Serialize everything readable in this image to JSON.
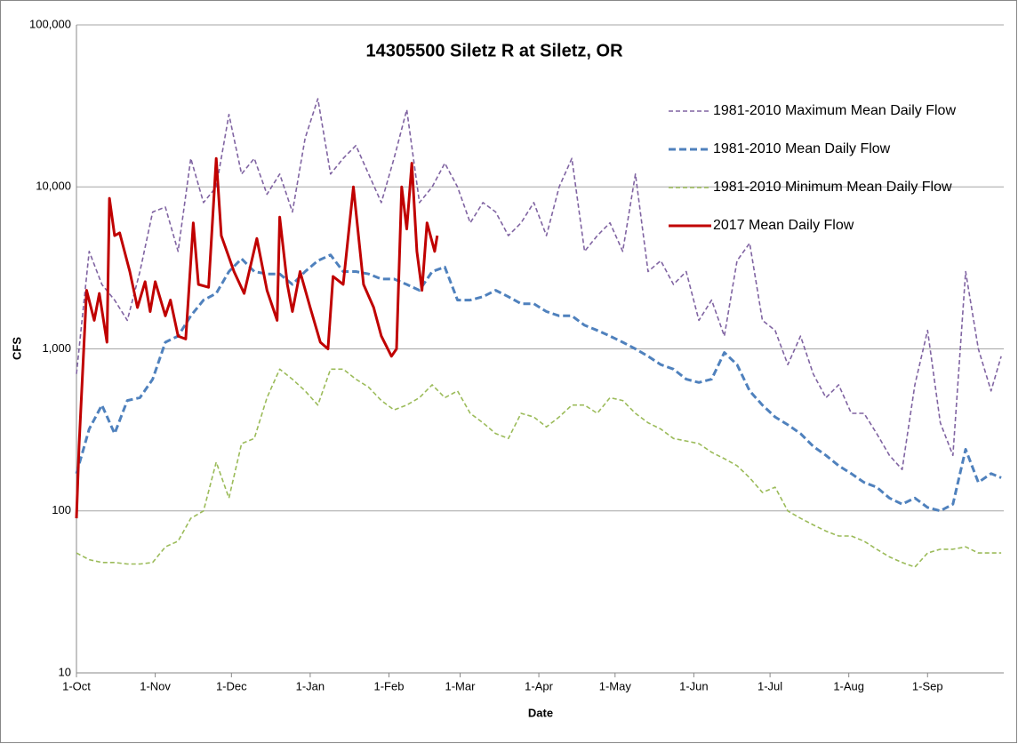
{
  "chart_data": {
    "type": "line",
    "title": "14305500 Siletz R at Siletz, OR",
    "xlabel": "Date",
    "ylabel": "CFS",
    "log_scale_y": true,
    "grid": true,
    "legend": "upper right",
    "xlim": [
      0,
      365
    ],
    "xticks": [
      {
        "value": 0,
        "label": "1-Oct"
      },
      {
        "value": 31,
        "label": "1-Nov"
      },
      {
        "value": 61,
        "label": "1-Dec"
      },
      {
        "value": 92,
        "label": "1-Jan"
      },
      {
        "value": 123,
        "label": "1-Feb"
      },
      {
        "value": 151,
        "label": "1-Mar"
      },
      {
        "value": 182,
        "label": "1-Apr"
      },
      {
        "value": 212,
        "label": "1-May"
      },
      {
        "value": 243,
        "label": "1-Jun"
      },
      {
        "value": 273,
        "label": "1-Jul"
      },
      {
        "value": 304,
        "label": "1-Aug"
      },
      {
        "value": 335,
        "label": "1-Sep"
      }
    ],
    "ylim": [
      10,
      100000
    ],
    "yticks": [
      10,
      100,
      {
        "value": 1000,
        "label": "1,000"
      },
      {
        "value": 10000,
        "label": "10,000"
      },
      {
        "value": 100000,
        "label": "100,000"
      }
    ],
    "series": [
      {
        "name": "1981-2010 Maximum Mean Daily Flow",
        "color": "#8064a2",
        "line_style": "dashed",
        "x": [
          0,
          5,
          10,
          15,
          20,
          25,
          30,
          35,
          40,
          45,
          50,
          55,
          60,
          65,
          70,
          75,
          80,
          85,
          90,
          95,
          100,
          105,
          110,
          115,
          120,
          125,
          130,
          135,
          140,
          145,
          150,
          155,
          160,
          165,
          170,
          175,
          180,
          185,
          190,
          195,
          200,
          205,
          210,
          215,
          220,
          225,
          230,
          235,
          240,
          245,
          250,
          255,
          260,
          265,
          270,
          275,
          280,
          285,
          290,
          295,
          300,
          305,
          310,
          315,
          320,
          325,
          330,
          335,
          340,
          345,
          350,
          355,
          360,
          364
        ],
        "values": [
          700,
          4000,
          2500,
          2000,
          1500,
          3000,
          7000,
          7500,
          4000,
          15000,
          8000,
          10000,
          28000,
          12000,
          15000,
          9000,
          12000,
          7000,
          20000,
          35000,
          12000,
          15000,
          18000,
          12000,
          8000,
          15000,
          30000,
          8000,
          10000,
          14000,
          10000,
          6000,
          8000,
          7000,
          5000,
          6000,
          8000,
          5000,
          10000,
          15000,
          4000,
          5000,
          6000,
          4000,
          12000,
          3000,
          3500,
          2500,
          3000,
          1500,
          2000,
          1200,
          3500,
          4500,
          1500,
          1300,
          800,
          1200,
          700,
          500,
          600,
          400,
          400,
          300,
          220,
          180,
          600,
          1300,
          350,
          220,
          3000,
          1000,
          550,
          900
        ]
      },
      {
        "name": "1981-2010 Mean Daily Flow",
        "color": "#4f81bd",
        "line_style": "dashed",
        "x": [
          0,
          5,
          10,
          15,
          20,
          25,
          30,
          35,
          40,
          45,
          50,
          55,
          60,
          65,
          70,
          75,
          80,
          85,
          90,
          95,
          100,
          105,
          110,
          115,
          120,
          125,
          130,
          135,
          140,
          145,
          150,
          155,
          160,
          165,
          170,
          175,
          180,
          185,
          190,
          195,
          200,
          205,
          210,
          215,
          220,
          225,
          230,
          235,
          240,
          245,
          250,
          255,
          260,
          265,
          270,
          275,
          280,
          285,
          290,
          295,
          300,
          305,
          310,
          315,
          320,
          325,
          330,
          335,
          340,
          345,
          350,
          355,
          360,
          364
        ],
        "values": [
          170,
          320,
          450,
          300,
          480,
          500,
          650,
          1100,
          1200,
          1600,
          2000,
          2200,
          3000,
          3600,
          3000,
          2900,
          2900,
          2500,
          3000,
          3500,
          3800,
          3000,
          3000,
          2900,
          2700,
          2700,
          2500,
          2300,
          3000,
          3200,
          2000,
          2000,
          2100,
          2300,
          2100,
          1900,
          1900,
          1700,
          1600,
          1600,
          1400,
          1300,
          1200,
          1100,
          1000,
          900,
          800,
          750,
          650,
          620,
          650,
          950,
          800,
          550,
          450,
          380,
          340,
          300,
          250,
          220,
          190,
          170,
          150,
          140,
          120,
          110,
          120,
          105,
          100,
          110,
          240,
          150,
          170,
          160
        ]
      },
      {
        "name": "1981-2010 Minimum Mean Daily Flow",
        "color": "#9bbb59",
        "line_style": "dashed",
        "x": [
          0,
          5,
          10,
          15,
          20,
          25,
          30,
          35,
          40,
          45,
          50,
          55,
          60,
          65,
          70,
          75,
          80,
          85,
          90,
          95,
          100,
          105,
          110,
          115,
          120,
          125,
          130,
          135,
          140,
          145,
          150,
          155,
          160,
          165,
          170,
          175,
          180,
          185,
          190,
          195,
          200,
          205,
          210,
          215,
          220,
          225,
          230,
          235,
          240,
          245,
          250,
          255,
          260,
          265,
          270,
          275,
          280,
          285,
          290,
          295,
          300,
          305,
          310,
          315,
          320,
          325,
          330,
          335,
          340,
          345,
          350,
          355,
          360,
          364
        ],
        "values": [
          55,
          50,
          48,
          48,
          47,
          47,
          48,
          60,
          65,
          90,
          100,
          200,
          120,
          260,
          280,
          500,
          750,
          650,
          550,
          450,
          750,
          750,
          650,
          580,
          480,
          420,
          450,
          500,
          600,
          500,
          550,
          400,
          350,
          300,
          280,
          400,
          380,
          330,
          380,
          450,
          450,
          400,
          500,
          480,
          400,
          350,
          320,
          280,
          270,
          260,
          230,
          210,
          190,
          160,
          130,
          140,
          100,
          90,
          82,
          75,
          70,
          70,
          65,
          58,
          52,
          48,
          45,
          55,
          58,
          58,
          60,
          55,
          55,
          55
        ]
      },
      {
        "name": "2017 Mean Daily Flow",
        "color": "#c00000",
        "line_style": "solid",
        "x": [
          0,
          1,
          4,
          7,
          9,
          12,
          13,
          15,
          17,
          21,
          24,
          27,
          29,
          31,
          35,
          37,
          40,
          43,
          46,
          48,
          52,
          55,
          57,
          62,
          66,
          71,
          75,
          79,
          80,
          83,
          85,
          88,
          92,
          96,
          99,
          101,
          105,
          109,
          113,
          117,
          120,
          124,
          126,
          128,
          130,
          132,
          134,
          136,
          138,
          141,
          142
        ],
        "values": [
          90,
          250,
          2300,
          1500,
          2200,
          1100,
          8500,
          5000,
          5200,
          3000,
          1800,
          2600,
          1700,
          2600,
          1600,
          2000,
          1200,
          1150,
          6000,
          2500,
          2400,
          15000,
          5000,
          3000,
          2200,
          4800,
          2300,
          1500,
          6500,
          2500,
          1700,
          3000,
          1800,
          1100,
          1000,
          2800,
          2500,
          10000,
          2500,
          1800,
          1200,
          900,
          1000,
          10000,
          5500,
          14000,
          4000,
          2300,
          6000,
          4000,
          5000
        ]
      }
    ]
  }
}
